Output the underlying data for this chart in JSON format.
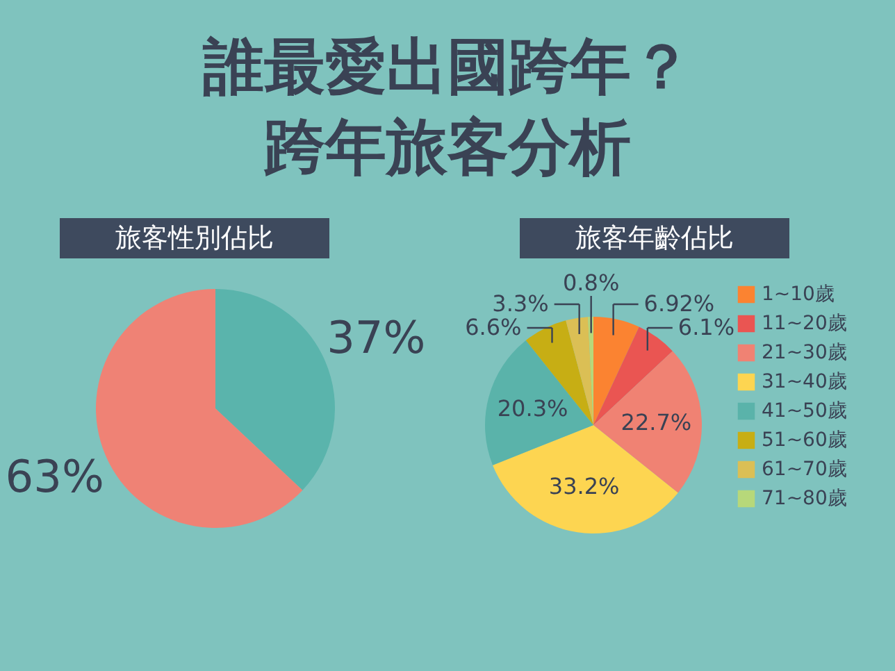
{
  "chart_data": [
    {
      "type": "other",
      "title": "誰最愛出國跨年？",
      "subtitle": "跨年旅客分析"
    },
    {
      "type": "pie",
      "title": "旅客性別佔比",
      "categories": [
        null,
        null
      ],
      "values": [
        37,
        63
      ],
      "colors": [
        "#5ab4ac",
        "#ef8275"
      ],
      "value_labels": [
        "37%",
        "63%"
      ]
    },
    {
      "type": "pie",
      "title": "旅客年齡佔比",
      "categories": [
        "1~10歲",
        "11~20歲",
        "21~30歲",
        "31~40歲",
        "41~50歲",
        "51~60歲",
        "61~70歲",
        "71~80歲"
      ],
      "values": [
        6.92,
        6.1,
        22.7,
        33.2,
        20.3,
        6.6,
        3.3,
        0.8
      ],
      "colors": [
        "#fb8331",
        "#ea5552",
        "#f08273",
        "#fdd551",
        "#5ab3aa",
        "#c7ae14",
        "#dbbf55",
        "#b7d87a"
      ],
      "value_labels": [
        "6.92%",
        "6.1%",
        "22.7%",
        "33.2%",
        "20.3%",
        "6.6%",
        "3.3%",
        "0.8%"
      ],
      "legend": "right"
    }
  ]
}
